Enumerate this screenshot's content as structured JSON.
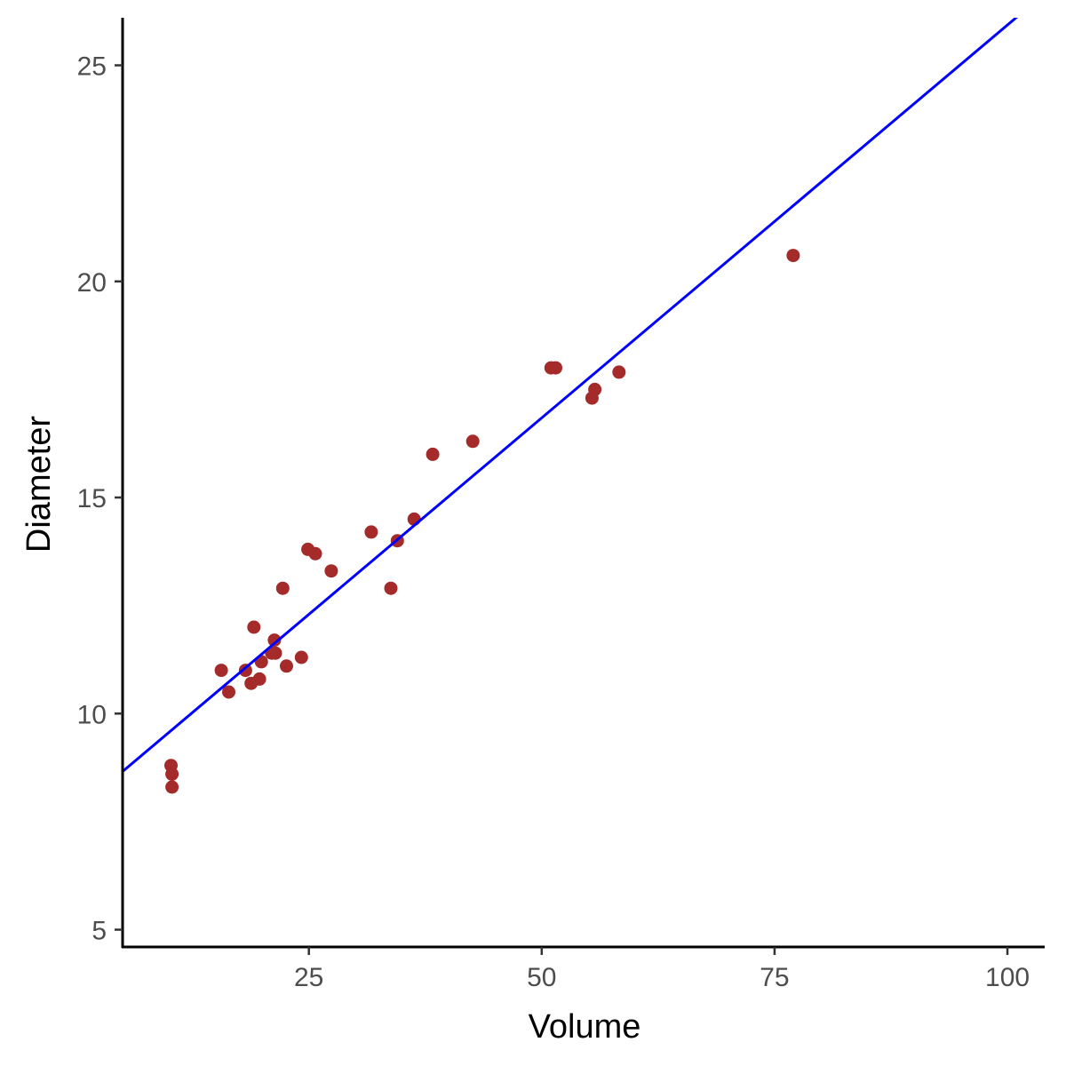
{
  "chart_data": {
    "type": "scatter",
    "title": "",
    "xlabel": "Volume",
    "ylabel": "Diameter",
    "xlim": [
      5,
      104
    ],
    "ylim": [
      4.6,
      26.1
    ],
    "x_ticks": [
      25,
      50,
      75,
      100
    ],
    "y_ticks": [
      5,
      10,
      15,
      20,
      25
    ],
    "x_tick_labels": [
      "25",
      "50",
      "75",
      "100"
    ],
    "y_tick_labels": [
      "5",
      "10",
      "15",
      "20",
      "25"
    ],
    "grid": false,
    "point_color": "#A52A2A",
    "line_color": "#0000FF",
    "points": [
      {
        "x": 10.3,
        "y": 8.3
      },
      {
        "x": 10.3,
        "y": 8.6
      },
      {
        "x": 10.2,
        "y": 8.8
      },
      {
        "x": 16.4,
        "y": 10.5
      },
      {
        "x": 18.8,
        "y": 10.7
      },
      {
        "x": 19.7,
        "y": 10.8
      },
      {
        "x": 15.6,
        "y": 11.0
      },
      {
        "x": 18.2,
        "y": 11.0
      },
      {
        "x": 22.6,
        "y": 11.1
      },
      {
        "x": 19.9,
        "y": 11.2
      },
      {
        "x": 24.2,
        "y": 11.3
      },
      {
        "x": 21.0,
        "y": 11.4
      },
      {
        "x": 21.4,
        "y": 11.4
      },
      {
        "x": 21.3,
        "y": 11.7
      },
      {
        "x": 19.1,
        "y": 12.0
      },
      {
        "x": 22.2,
        "y": 12.9
      },
      {
        "x": 33.8,
        "y": 12.9
      },
      {
        "x": 27.4,
        "y": 13.3
      },
      {
        "x": 25.7,
        "y": 13.7
      },
      {
        "x": 24.9,
        "y": 13.8
      },
      {
        "x": 34.5,
        "y": 14.0
      },
      {
        "x": 31.7,
        "y": 14.2
      },
      {
        "x": 36.3,
        "y": 14.5
      },
      {
        "x": 38.3,
        "y": 16.0
      },
      {
        "x": 42.6,
        "y": 16.3
      },
      {
        "x": 55.4,
        "y": 17.3
      },
      {
        "x": 55.7,
        "y": 17.5
      },
      {
        "x": 58.3,
        "y": 17.9
      },
      {
        "x": 51.5,
        "y": 18.0
      },
      {
        "x": 51.0,
        "y": 18.0
      },
      {
        "x": 77.0,
        "y": 20.6
      }
    ],
    "fit_line": {
      "x": [
        5,
        104
      ],
      "y": [
        8.66,
        26.66
      ]
    }
  }
}
